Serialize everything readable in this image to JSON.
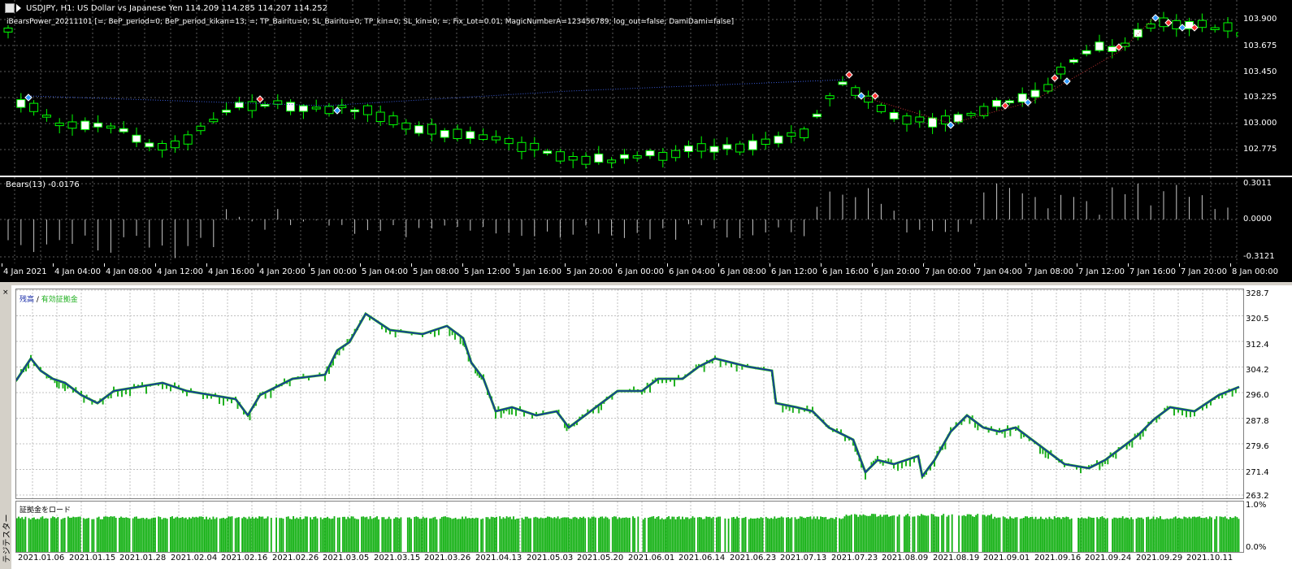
{
  "chart": {
    "header": "USDJPY, H1:  US Dollar vs Japanese Yen  114.209 114.285 114.207 114.252",
    "ea_params": "iBearsPower_20211101 [=; BeP_period=0; BeP_period_kikan=13; =; TP_Bairitu=0; SL_Bairitu=0; TP_kin=0; SL_kin=0; =; Fix_Lot=0.01; MagicNumberA=123456789; log_out=false; DamiDami=false]",
    "indicator_label": "Bears(13) -0.0176",
    "price_labels": [
      "103.900",
      "103.675",
      "103.450",
      "103.225",
      "103.000",
      "102.775"
    ],
    "bears_labels": [
      "0.3011",
      "0.0000",
      "-0.3121"
    ],
    "time_labels": [
      "4 Jan 2021",
      "4 Jan 04:00",
      "4 Jan 08:00",
      "4 Jan 12:00",
      "4 Jan 16:00",
      "4 Jan 20:00",
      "5 Jan 00:00",
      "5 Jan 04:00",
      "5 Jan 08:00",
      "5 Jan 12:00",
      "5 Jan 16:00",
      "5 Jan 20:00",
      "6 Jan 00:00",
      "6 Jan 04:00",
      "6 Jan 08:00",
      "6 Jan 12:00",
      "6 Jan 16:00",
      "6 Jan 20:00",
      "7 Jan 00:00",
      "7 Jan 04:00",
      "7 Jan 08:00",
      "7 Jan 12:00",
      "7 Jan 16:00",
      "7 Jan 20:00",
      "8 Jan 00:00"
    ],
    "colors": {
      "background": "#000000",
      "bull": "#00ff00",
      "grid": "#5a5a5a",
      "buy_arrow": "#3399ff",
      "sell_arrow": "#ff3333"
    }
  },
  "tester": {
    "side_label": "テジテスター",
    "legend_balance": "残高",
    "legend_sep": " / ",
    "legend_equity": "有効証拠金",
    "margin_label": "証拠金をロード",
    "equity_labels": [
      "328.7",
      "320.5",
      "312.4",
      "304.2",
      "296.0",
      "287.8",
      "279.6",
      "271.4",
      "263.2"
    ],
    "margin_labels": [
      "1.0%",
      "0.0%"
    ],
    "date_labels": [
      "2021.01.06",
      "2021.01.15",
      "2021.01.28",
      "2021.02.04",
      "2021.02.16",
      "2021.02.26",
      "2021.03.05",
      "2021.03.15",
      "2021.03.26",
      "2021.04.13",
      "2021.05.03",
      "2021.05.20",
      "2021.06.01",
      "2021.06.14",
      "2021.06.23",
      "2021.07.13",
      "2021.07.23",
      "2021.08.09",
      "2021.08.19",
      "2021.09.01",
      "2021.09.16",
      "2021.09.24",
      "2021.09.29",
      "2021.10.11"
    ],
    "colors": {
      "balance": "#1a2eaa",
      "equity": "#20b020",
      "margin": "#10b010"
    }
  }
}
